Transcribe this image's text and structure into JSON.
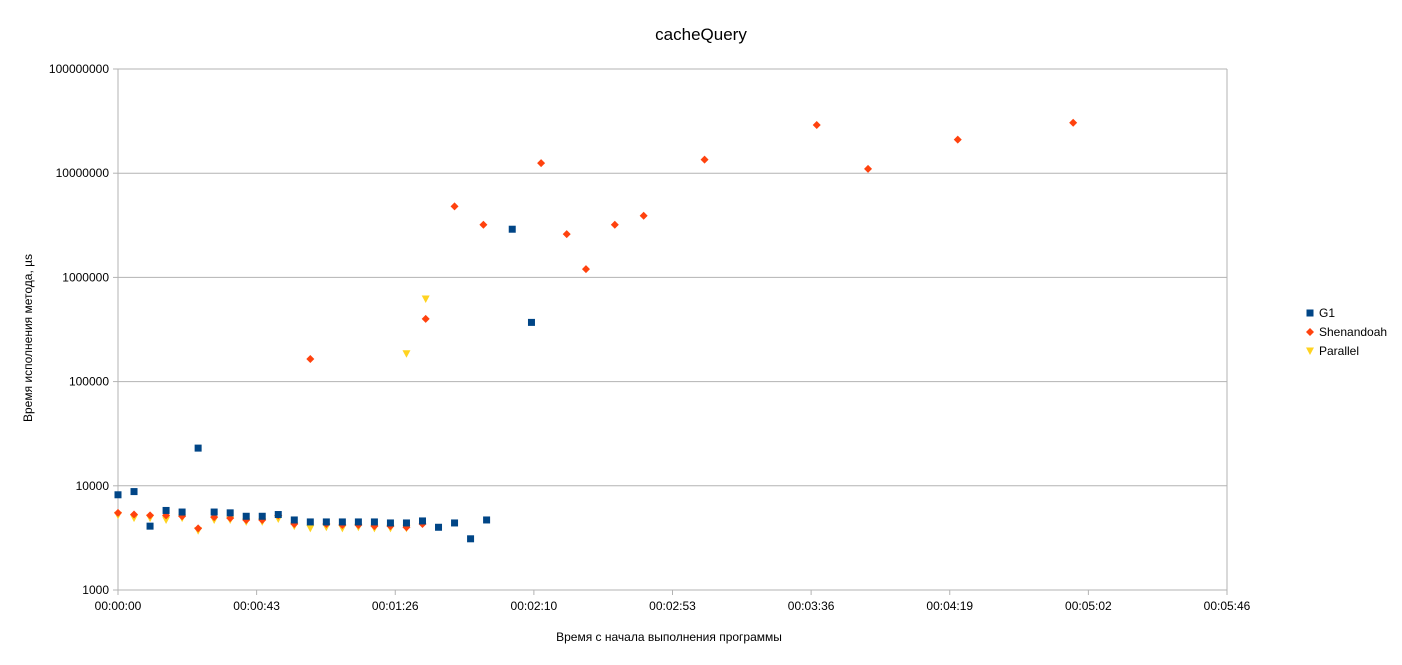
{
  "chart_data": {
    "type": "scatter",
    "title": "cacheQuery",
    "xlabel": "Время с начала выполнения программы",
    "ylabel": "Время исполнения метода, µs",
    "x_format": "hh:mm:ss",
    "x_unit": "seconds",
    "xlim": [
      0,
      346
    ],
    "x_ticks": [
      "00:00:00",
      "00:00:43",
      "00:01:26",
      "00:02:10",
      "00:02:53",
      "00:03:36",
      "00:04:19",
      "00:05:02",
      "00:05:46"
    ],
    "y_scale": "log",
    "ylim": [
      1000,
      100000000
    ],
    "y_ticks": [
      "1000",
      "10000",
      "100000",
      "1000000",
      "10000000",
      "100000000"
    ],
    "grid": "horizontal",
    "legend_position": "right",
    "series": [
      {
        "name": "G1",
        "color": "#004586",
        "marker": "square",
        "points": [
          [
            0,
            8200
          ],
          [
            5,
            8800
          ],
          [
            10,
            4100
          ],
          [
            15,
            5800
          ],
          [
            20,
            5600
          ],
          [
            25,
            23000
          ],
          [
            30,
            5600
          ],
          [
            35,
            5500
          ],
          [
            40,
            5100
          ],
          [
            45,
            5100
          ],
          [
            50,
            5300
          ],
          [
            55,
            4700
          ],
          [
            60,
            4500
          ],
          [
            65,
            4500
          ],
          [
            70,
            4500
          ],
          [
            75,
            4500
          ],
          [
            80,
            4500
          ],
          [
            85,
            4400
          ],
          [
            90,
            4400
          ],
          [
            95,
            4600
          ],
          [
            100,
            4000
          ],
          [
            105,
            4400
          ],
          [
            110,
            3100
          ],
          [
            115,
            4700
          ],
          [
            123,
            2900000
          ],
          [
            129,
            370000
          ]
        ]
      },
      {
        "name": "Shenandoah",
        "color": "#ff420e",
        "marker": "diamond",
        "points": [
          [
            0,
            5500
          ],
          [
            5,
            5300
          ],
          [
            10,
            5200
          ],
          [
            15,
            5200
          ],
          [
            20,
            5100
          ],
          [
            25,
            3900
          ],
          [
            30,
            5000
          ],
          [
            35,
            4900
          ],
          [
            40,
            4700
          ],
          [
            45,
            4700
          ],
          [
            50,
            5200
          ],
          [
            55,
            4300
          ],
          [
            60,
            165000
          ],
          [
            65,
            4300
          ],
          [
            70,
            4200
          ],
          [
            75,
            4200
          ],
          [
            80,
            4100
          ],
          [
            85,
            4100
          ],
          [
            90,
            4000
          ],
          [
            95,
            4300
          ],
          [
            96,
            400000
          ],
          [
            105,
            4800000
          ],
          [
            114,
            3200000
          ],
          [
            132,
            12500000
          ],
          [
            140,
            2600000
          ],
          [
            146,
            1200000
          ],
          [
            155,
            3200000
          ],
          [
            164,
            3900000
          ],
          [
            183,
            13500000
          ],
          [
            218,
            29000000
          ],
          [
            234,
            11000000
          ],
          [
            262,
            21000000
          ],
          [
            298,
            30500000
          ]
        ]
      },
      {
        "name": "Parallel",
        "color": "#ffd320",
        "marker": "triangle-down",
        "points": [
          [
            0,
            5200
          ],
          [
            5,
            4900
          ],
          [
            10,
            4900
          ],
          [
            15,
            4700
          ],
          [
            20,
            4900
          ],
          [
            25,
            3700
          ],
          [
            30,
            4700
          ],
          [
            35,
            4700
          ],
          [
            40,
            4500
          ],
          [
            45,
            4500
          ],
          [
            50,
            4800
          ],
          [
            55,
            4100
          ],
          [
            60,
            3900
          ],
          [
            65,
            4000
          ],
          [
            70,
            3900
          ],
          [
            75,
            4000
          ],
          [
            80,
            3900
          ],
          [
            85,
            3900
          ],
          [
            90,
            3900
          ],
          [
            90,
            185000
          ],
          [
            96,
            620000
          ]
        ]
      }
    ]
  }
}
